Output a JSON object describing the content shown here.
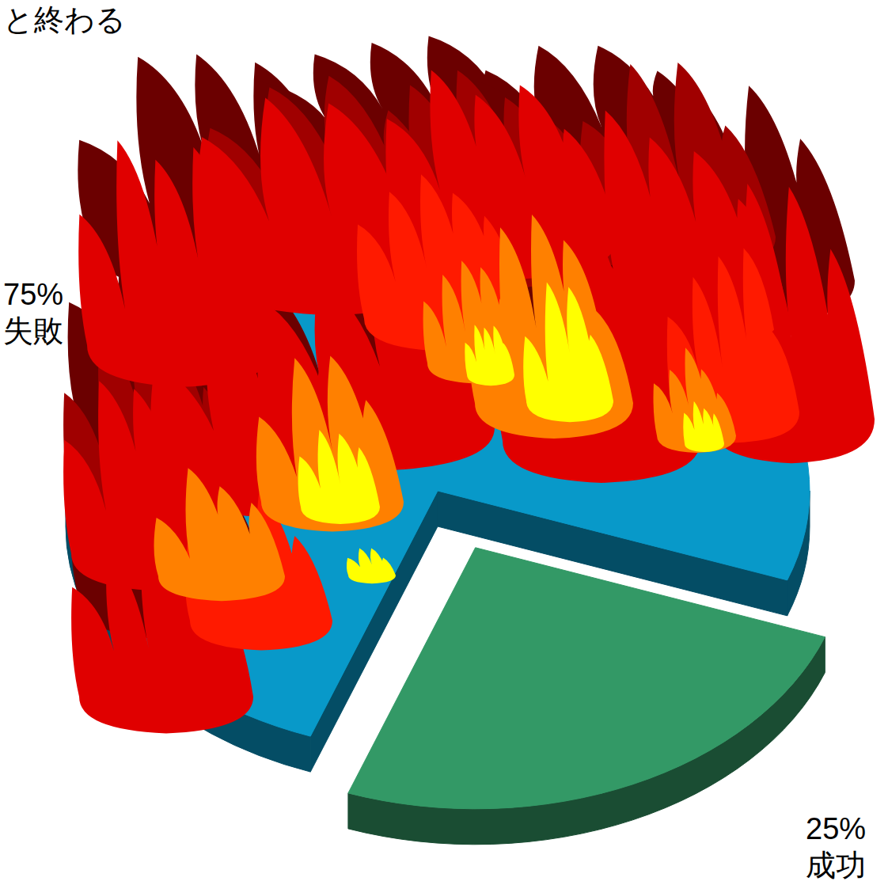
{
  "chart_data": {
    "type": "pie",
    "title": "と終わる",
    "categories": [
      "失敗",
      "成功"
    ],
    "values": [
      75,
      25
    ],
    "value_labels": [
      "75%",
      "25%"
    ],
    "colors": [
      "#0899c9",
      "#339966"
    ],
    "data_labels": true
  }
}
